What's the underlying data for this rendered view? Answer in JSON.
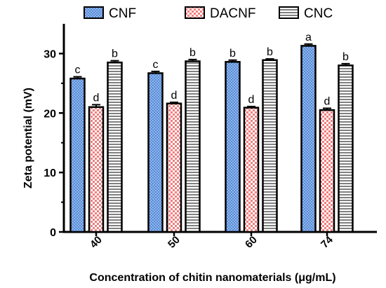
{
  "chart_data": {
    "type": "bar",
    "categories": [
      "40",
      "50",
      "60",
      "74"
    ],
    "series": [
      {
        "name": "CNF",
        "values": [
          25.8,
          26.7,
          28.6,
          31.3
        ],
        "errors": [
          0.3,
          0.3,
          0.3,
          0.3
        ],
        "labels": [
          "c",
          "c",
          "b",
          "a"
        ],
        "color": "#6d9be0",
        "pattern": "crosshatch"
      },
      {
        "name": "DACNF",
        "values": [
          21.0,
          21.6,
          20.9,
          20.5
        ],
        "errors": [
          0.4,
          0.2,
          0.2,
          0.3
        ],
        "labels": [
          "d",
          "d",
          "d",
          "d"
        ],
        "color": "#f08080",
        "pattern": "checker"
      },
      {
        "name": "CNC",
        "values": [
          28.5,
          28.7,
          28.9,
          28.0
        ],
        "errors": [
          0.3,
          0.3,
          0.2,
          0.3
        ],
        "labels": [
          "b",
          "b",
          "b",
          "b"
        ],
        "color": "#000000",
        "pattern": "horizontal-lines"
      }
    ],
    "xlabel": "Concentration of chitin nanomaterials (μg/mL)",
    "ylabel": "Zeta potential (mV)",
    "ylim": [
      0,
      35
    ],
    "yticks": [
      0,
      10,
      20,
      30
    ],
    "grid": false,
    "legend": "top"
  }
}
